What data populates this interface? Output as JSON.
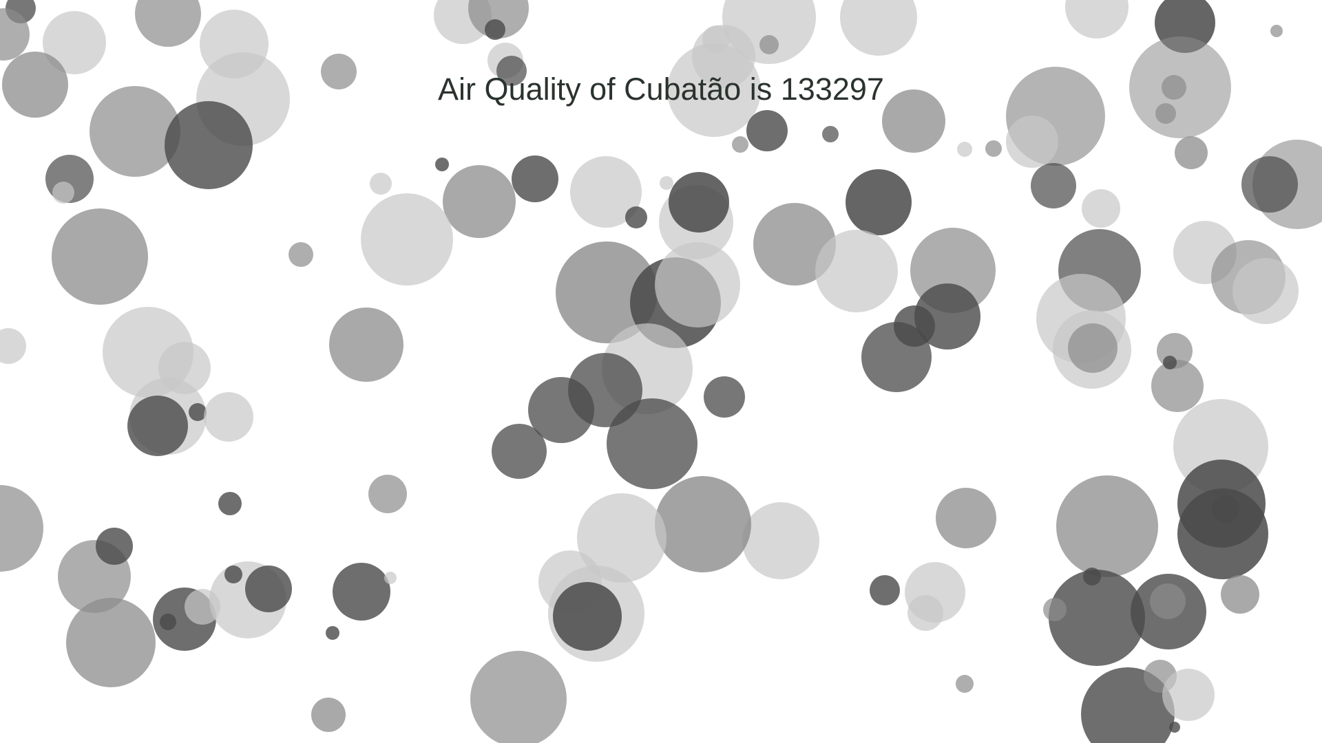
{
  "headline": "Air Quality of Cubatão is 133297",
  "colors": {
    "background": "#ffffff",
    "bubble_light": "#c8c8c8",
    "bubble_mid": "#8c8c8c",
    "bubble_dark": "#4a4a4a",
    "headline_text": "#2a332d"
  }
}
